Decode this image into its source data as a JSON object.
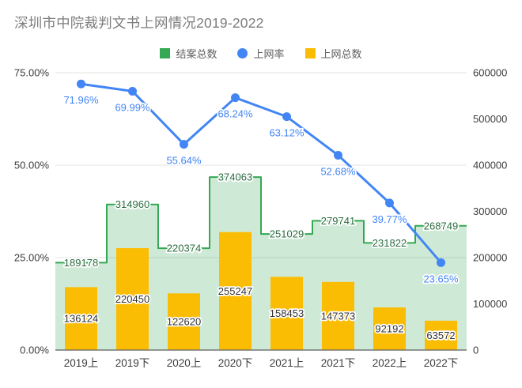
{
  "title": "深圳市中院裁判文书上网情况2019-2022",
  "legend": {
    "items": [
      {
        "label": "结案总数",
        "color": "#34a853",
        "shape": "square"
      },
      {
        "label": "上网率",
        "color": "#4285f4",
        "shape": "circle"
      },
      {
        "label": "上网总数",
        "color": "#fbbc04",
        "shape": "square"
      }
    ]
  },
  "chart_data": {
    "type": "combo",
    "title": "深圳市中院裁判文书上网情况2019-2022",
    "categories": [
      "2019上",
      "2019下",
      "2020上",
      "2020下",
      "2021上",
      "2021下",
      "2022上",
      "2022下"
    ],
    "series": [
      {
        "name": "结案总数",
        "type": "stepped-area",
        "axis": "right",
        "color": "#34a853",
        "fill_color": "#34a853",
        "fill_opacity": 0.24,
        "label_color": "#2c6b3f",
        "values": [
          189178,
          314960,
          220374,
          374063,
          251029,
          279741,
          231822,
          268749
        ]
      },
      {
        "name": "上网总数",
        "type": "bar",
        "axis": "right",
        "color": "#fbbc04",
        "label_color": "#333333",
        "values": [
          136124,
          220450,
          122620,
          255247,
          158453,
          147373,
          92192,
          63572
        ]
      },
      {
        "name": "上网率",
        "type": "line",
        "axis": "left",
        "color": "#4285f4",
        "label_color": "#4285f4",
        "values": [
          71.96,
          69.99,
          55.64,
          68.24,
          63.12,
          52.68,
          39.77,
          23.65
        ],
        "labels": [
          "71.96%",
          "69.99%",
          "55.64%",
          "68.24%",
          "63.12%",
          "52.68%",
          "39.77%",
          "23.65%"
        ]
      }
    ],
    "left_axis": {
      "min": 0,
      "max": 75,
      "ticks": [
        0,
        25,
        50,
        75
      ],
      "tick_labels": [
        "0.00%",
        "25.00%",
        "50.00%",
        "75.00%"
      ]
    },
    "right_axis": {
      "min": 0,
      "max": 600000,
      "ticks": [
        0,
        100000,
        200000,
        300000,
        400000,
        500000,
        600000
      ],
      "tick_labels": [
        "0",
        "100000",
        "200000",
        "300000",
        "400000",
        "500000",
        "600000"
      ]
    },
    "grid": {
      "color": "#e3e3e3",
      "baseline_color": "#5f5f5f",
      "on": true
    },
    "legend_position": "top",
    "axis_text_color": "#3c3c3c"
  }
}
